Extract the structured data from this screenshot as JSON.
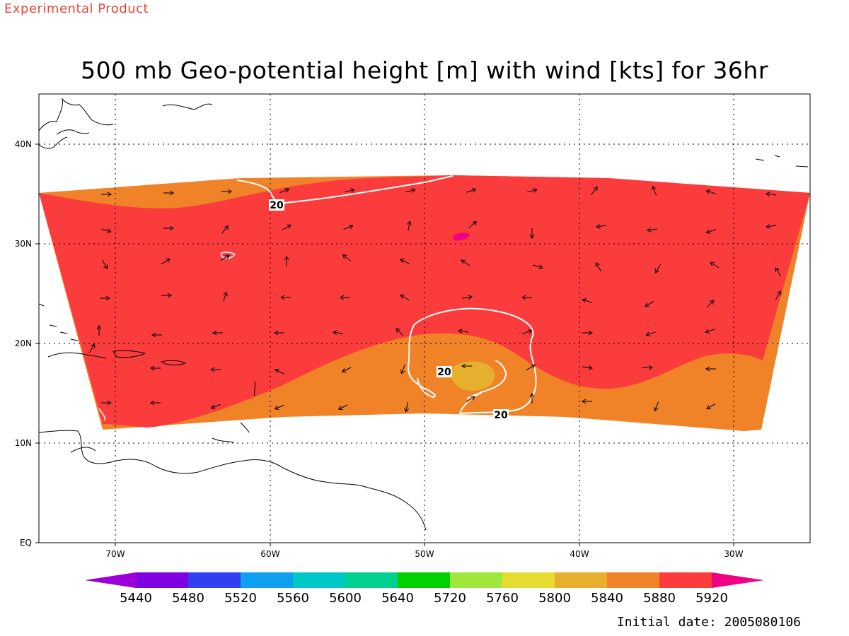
{
  "watermark": "Experimental Product",
  "title": "500 mb Geo-potential height [m] with wind [kts] for 36hr",
  "footer": "Initial date: 2005080106",
  "axes": {
    "x_ticks": [
      "70W",
      "60W",
      "50W",
      "40W",
      "30W"
    ],
    "y_ticks": [
      "EQ",
      "10N",
      "20N",
      "30N",
      "40N"
    ]
  },
  "contour_labels": [
    "20",
    "20",
    "20"
  ],
  "colorbar": {
    "labels": [
      "5440",
      "5480",
      "5520",
      "5560",
      "5600",
      "5640",
      "5720",
      "5760",
      "5800",
      "5840",
      "5880",
      "5920"
    ],
    "colors": [
      "#9b00d9",
      "#7f00e0",
      "#3040f0",
      "#10a0f0",
      "#00c8c8",
      "#00d090",
      "#00d000",
      "#a0e63c",
      "#e6dc32",
      "#e6af2d",
      "#f08228",
      "#fa3c3c",
      "#f00082"
    ]
  },
  "fill_colors": {
    "orange": "#f08228",
    "red": "#fa3c3c",
    "gold": "#e6af2d",
    "magenta": "#f00082"
  }
}
